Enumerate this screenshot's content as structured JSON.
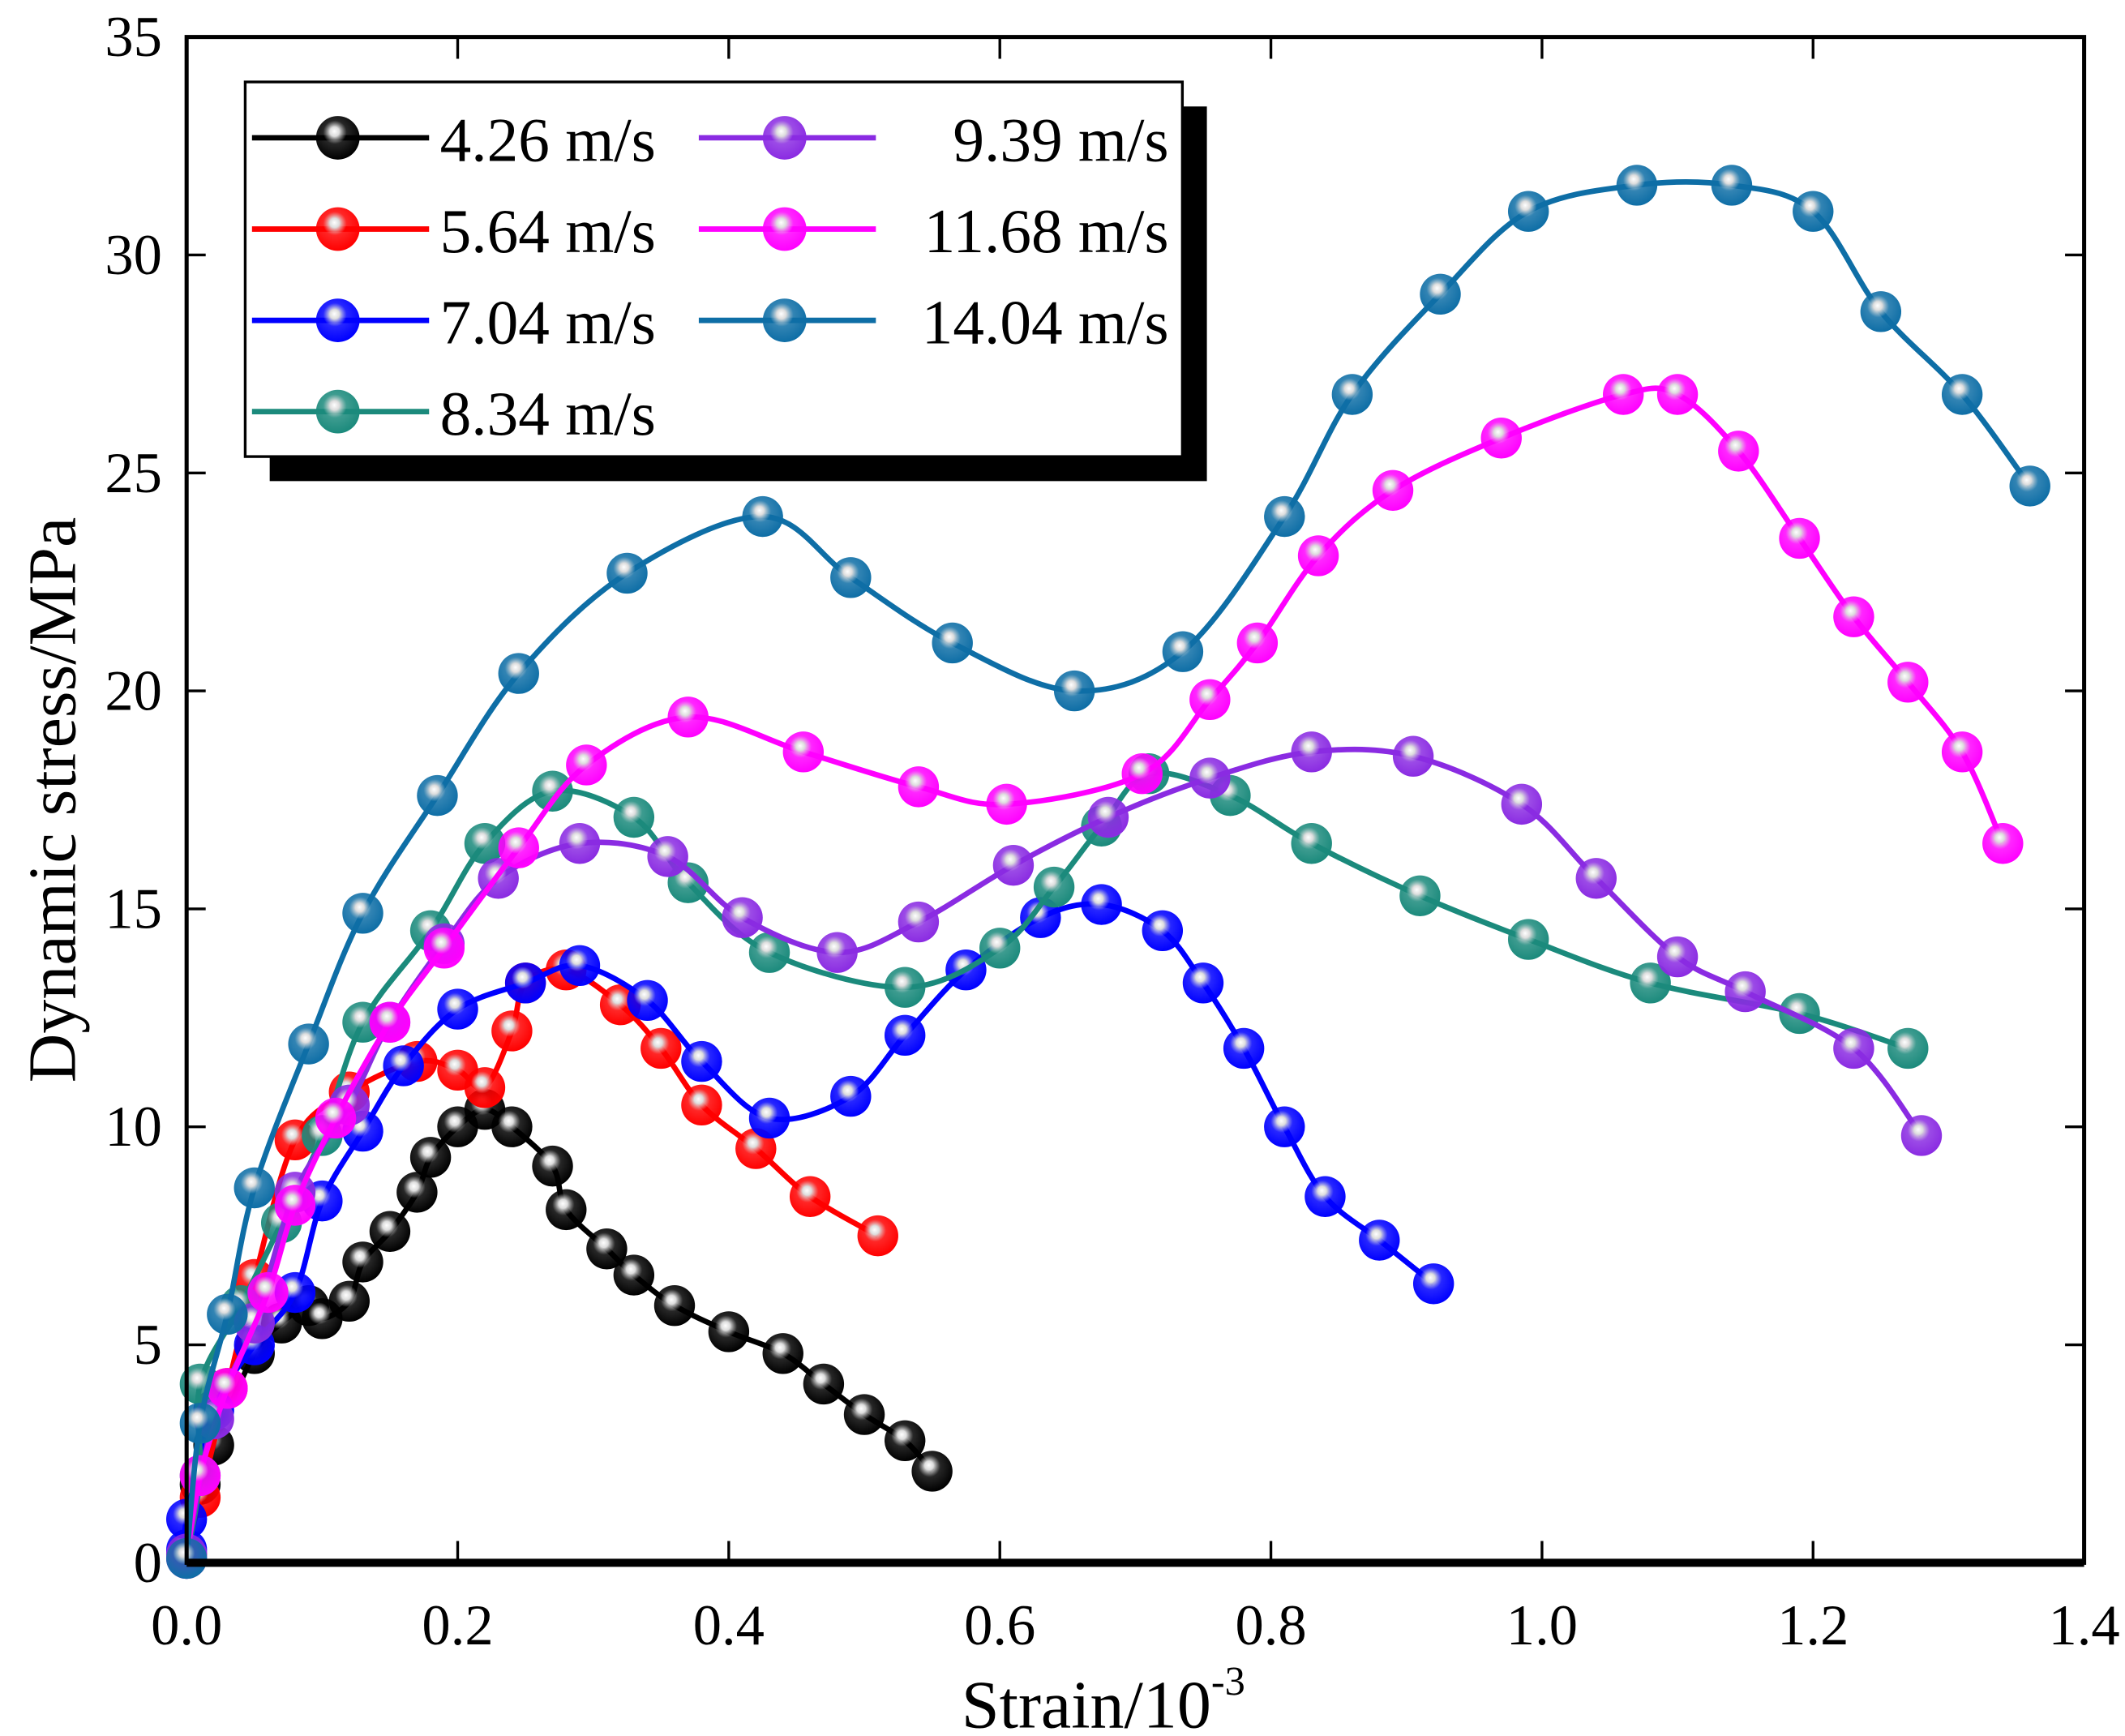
{
  "chart_data": {
    "type": "line",
    "title": "",
    "xlabel": "Strain/10",
    "xlabel_sup": "-3",
    "ylabel": "Dynamic stress/MPa",
    "xlim": [
      0,
      1.4
    ],
    "ylim": [
      0,
      35
    ],
    "xticks": [
      "0.0",
      "0.2",
      "0.4",
      "0.6",
      "0.8",
      "1.0",
      "1.2",
      "1.4"
    ],
    "yticks": [
      "0",
      "5",
      "10",
      "15",
      "20",
      "25",
      "30",
      "35"
    ],
    "grid": false,
    "legend_position": "top-left",
    "series": [
      {
        "name": "4.26 m/s",
        "color": "#000000",
        "points": [
          [
            0.01,
            1.8
          ],
          [
            0.02,
            2.7
          ],
          [
            0.05,
            4.8
          ],
          [
            0.07,
            5.5
          ],
          [
            0.09,
            5.9
          ],
          [
            0.1,
            5.6
          ],
          [
            0.12,
            6.0
          ],
          [
            0.13,
            6.9
          ],
          [
            0.15,
            7.6
          ],
          [
            0.17,
            8.5
          ],
          [
            0.18,
            9.3
          ],
          [
            0.2,
            10.0
          ],
          [
            0.22,
            10.4
          ],
          [
            0.24,
            10.0
          ],
          [
            0.27,
            9.1
          ],
          [
            0.28,
            8.1
          ],
          [
            0.31,
            7.2
          ],
          [
            0.33,
            6.6
          ],
          [
            0.36,
            5.9
          ],
          [
            0.4,
            5.3
          ],
          [
            0.44,
            4.8
          ],
          [
            0.47,
            4.1
          ],
          [
            0.5,
            3.4
          ],
          [
            0.53,
            2.8
          ],
          [
            0.55,
            2.1
          ]
        ]
      },
      {
        "name": "5.64 m/s",
        "color": "#ff0000",
        "points": [
          [
            0.0,
            0.2
          ],
          [
            0.01,
            1.5
          ],
          [
            0.03,
            4.0
          ],
          [
            0.05,
            6.5
          ],
          [
            0.08,
            9.7
          ],
          [
            0.12,
            10.8
          ],
          [
            0.17,
            11.5
          ],
          [
            0.2,
            11.3
          ],
          [
            0.22,
            10.9
          ],
          [
            0.24,
            12.2
          ],
          [
            0.25,
            13.3
          ],
          [
            0.28,
            13.6
          ],
          [
            0.32,
            12.8
          ],
          [
            0.35,
            11.8
          ],
          [
            0.38,
            10.5
          ],
          [
            0.42,
            9.5
          ],
          [
            0.46,
            8.4
          ],
          [
            0.51,
            7.5
          ]
        ]
      },
      {
        "name": "7.04 m/s",
        "color": "#0000ff",
        "points": [
          [
            0.0,
            0.3
          ],
          [
            0.0,
            1.0
          ],
          [
            0.02,
            3.5
          ],
          [
            0.05,
            5.0
          ],
          [
            0.08,
            6.2
          ],
          [
            0.1,
            8.3
          ],
          [
            0.13,
            9.9
          ],
          [
            0.16,
            11.4
          ],
          [
            0.2,
            12.7
          ],
          [
            0.25,
            13.3
          ],
          [
            0.29,
            13.7
          ],
          [
            0.34,
            12.9
          ],
          [
            0.38,
            11.5
          ],
          [
            0.43,
            10.2
          ],
          [
            0.49,
            10.7
          ],
          [
            0.53,
            12.1
          ],
          [
            0.575,
            13.6
          ],
          [
            0.63,
            14.8
          ],
          [
            0.675,
            15.1
          ],
          [
            0.72,
            14.5
          ],
          [
            0.75,
            13.3
          ],
          [
            0.78,
            11.8
          ],
          [
            0.81,
            10.0
          ],
          [
            0.84,
            8.4
          ],
          [
            0.88,
            7.4
          ],
          [
            0.92,
            6.4
          ]
        ]
      },
      {
        "name": "8.34 m/s",
        "color": "#1b8a7c",
        "points": [
          [
            0.0,
            0.1
          ],
          [
            0.01,
            2.0
          ],
          [
            0.01,
            4.1
          ],
          [
            0.04,
            5.9
          ],
          [
            0.07,
            7.8
          ],
          [
            0.1,
            9.8
          ],
          [
            0.13,
            12.4
          ],
          [
            0.18,
            14.5
          ],
          [
            0.22,
            16.5
          ],
          [
            0.27,
            17.7
          ],
          [
            0.33,
            17.1
          ],
          [
            0.37,
            15.6
          ],
          [
            0.43,
            14.0
          ],
          [
            0.53,
            13.2
          ],
          [
            0.6,
            14.1
          ],
          [
            0.64,
            15.5
          ],
          [
            0.675,
            16.9
          ],
          [
            0.71,
            18.1
          ],
          [
            0.77,
            17.6
          ],
          [
            0.83,
            16.5
          ],
          [
            0.91,
            15.3
          ],
          [
            0.99,
            14.3
          ],
          [
            1.08,
            13.3
          ],
          [
            1.19,
            12.6
          ],
          [
            1.27,
            11.8
          ]
        ]
      },
      {
        "name": "9.39 m/s",
        "color": "#8a2be2",
        "points": [
          [
            0.0,
            0.2
          ],
          [
            0.02,
            3.3
          ],
          [
            0.05,
            5.5
          ],
          [
            0.08,
            8.5
          ],
          [
            0.12,
            10.5
          ],
          [
            0.15,
            12.4
          ],
          [
            0.19,
            14.2
          ],
          [
            0.23,
            15.7
          ],
          [
            0.29,
            16.5
          ],
          [
            0.355,
            16.2
          ],
          [
            0.41,
            14.8
          ],
          [
            0.48,
            14.0
          ],
          [
            0.54,
            14.7
          ],
          [
            0.61,
            16.0
          ],
          [
            0.68,
            17.1
          ],
          [
            0.755,
            18.0
          ],
          [
            0.83,
            18.6
          ],
          [
            0.905,
            18.5
          ],
          [
            0.985,
            17.4
          ],
          [
            1.04,
            15.7
          ],
          [
            1.1,
            13.9
          ],
          [
            1.15,
            13.1
          ],
          [
            1.23,
            11.8
          ],
          [
            1.28,
            9.8
          ]
        ]
      },
      {
        "name": "11.68 m/s",
        "color": "#ff00ff",
        "points": [
          [
            0.0,
            0.1
          ],
          [
            0.01,
            2.0
          ],
          [
            0.03,
            4.0
          ],
          [
            0.06,
            6.2
          ],
          [
            0.08,
            8.2
          ],
          [
            0.11,
            10.2
          ],
          [
            0.15,
            12.4
          ],
          [
            0.19,
            14.1
          ],
          [
            0.245,
            16.4
          ],
          [
            0.295,
            18.3
          ],
          [
            0.37,
            19.4
          ],
          [
            0.455,
            18.6
          ],
          [
            0.54,
            17.8
          ],
          [
            0.605,
            17.4
          ],
          [
            0.705,
            18.1
          ],
          [
            0.755,
            19.8
          ],
          [
            0.79,
            21.1
          ],
          [
            0.835,
            23.1
          ],
          [
            0.89,
            24.6
          ],
          [
            0.97,
            25.8
          ],
          [
            1.06,
            26.8
          ],
          [
            1.1,
            26.8
          ],
          [
            1.145,
            25.5
          ],
          [
            1.19,
            23.5
          ],
          [
            1.23,
            21.7
          ],
          [
            1.27,
            20.2
          ],
          [
            1.31,
            18.6
          ],
          [
            1.34,
            16.5
          ]
        ]
      },
      {
        "name": "14.04 m/s",
        "color": "#0e6ea6",
        "points": [
          [
            0.0,
            0.1
          ],
          [
            0.01,
            3.2
          ],
          [
            0.03,
            5.7
          ],
          [
            0.05,
            8.6
          ],
          [
            0.09,
            11.9
          ],
          [
            0.13,
            14.9
          ],
          [
            0.185,
            17.6
          ],
          [
            0.245,
            20.4
          ],
          [
            0.325,
            22.7
          ],
          [
            0.425,
            24.0
          ],
          [
            0.49,
            22.6
          ],
          [
            0.565,
            21.1
          ],
          [
            0.655,
            20.0
          ],
          [
            0.735,
            20.9
          ],
          [
            0.81,
            24.0
          ],
          [
            0.86,
            26.8
          ],
          [
            0.925,
            29.1
          ],
          [
            0.99,
            31.0
          ],
          [
            1.07,
            31.6
          ],
          [
            1.14,
            31.6
          ],
          [
            1.2,
            31.0
          ],
          [
            1.25,
            28.7
          ],
          [
            1.31,
            26.8
          ],
          [
            1.36,
            24.7
          ]
        ]
      }
    ]
  }
}
